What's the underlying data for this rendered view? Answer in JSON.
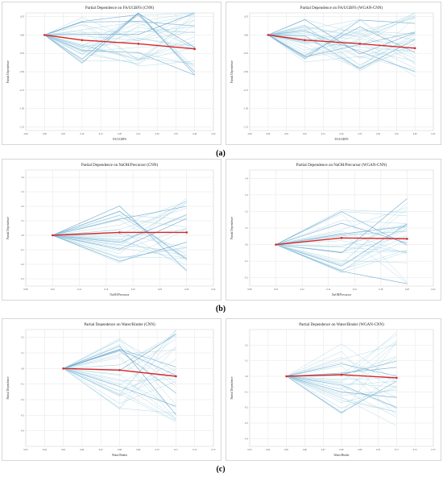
{
  "figure": {
    "captions": [
      "(a)",
      "(b)",
      "(c)"
    ]
  },
  "colors": {
    "ice_line": "#9ecfe0",
    "ice_line_dark": "#5b9cc8",
    "pdp_line": "#d62728",
    "grid": "#e6e6e6",
    "frame": "#bdbdbd"
  },
  "chart_data": [
    {
      "type": "line",
      "title": "Partial Dependence on FA/UGBFS (CNN)",
      "xlabel": "FA/UGBFS",
      "ylabel": "Partial Dependence",
      "xlim": [
        -0.05,
        0.45
      ],
      "ylim": [
        -1.3,
        0.3
      ],
      "xticks": [
        "-0.05",
        "0.00",
        "0.05",
        "0.10",
        "0.15",
        "0.20",
        "0.25",
        "0.30",
        "0.35",
        "0.40",
        "0.45"
      ],
      "yticks": [
        "0.25",
        "0.00",
        "-0.25",
        "-0.50",
        "-0.75",
        "-1.00",
        "-1.25"
      ],
      "x": [
        0.0,
        0.1,
        0.25,
        0.4
      ],
      "series": [
        {
          "values": [
            0.0,
            -0.07,
            -0.12,
            -0.19
          ]
        }
      ],
      "ice_range": [
        -0.75,
        0.25
      ]
    },
    {
      "type": "line",
      "title": "Partial Dependence on FA/UGBFS (WGAN-CNN)",
      "xlabel": "FA/UGBFS",
      "ylabel": "Partial Dependence",
      "xlim": [
        -0.05,
        0.45
      ],
      "ylim": [
        -1.3,
        0.3
      ],
      "xticks": [
        "-0.05",
        "0.00",
        "0.05",
        "0.10",
        "0.15",
        "0.20",
        "0.25",
        "0.30",
        "0.35",
        "0.40",
        "0.45"
      ],
      "yticks": [
        "0.25",
        "0.00",
        "-0.25",
        "-0.50",
        "-0.75",
        "-1.00",
        "-1.25"
      ],
      "x": [
        0.0,
        0.1,
        0.25,
        0.4
      ],
      "series": [
        {
          "values": [
            0.0,
            -0.07,
            -0.12,
            -0.18
          ]
        }
      ],
      "ice_range": [
        -0.75,
        0.25
      ]
    },
    {
      "type": "line",
      "title": "Partial Dependence on NaOH/Precursor (CNN)",
      "xlabel": "NaOH/Precursor",
      "ylabel": "Partial Dependence",
      "xlim": [
        0.08,
        0.22
      ],
      "ylim": [
        -0.35,
        0.45
      ],
      "xticks": [
        "0.08",
        "0.10",
        "0.12",
        "0.14",
        "0.16",
        "0.18",
        "0.20",
        "0.22"
      ],
      "yticks": [
        "0.4",
        "0.3",
        "0.2",
        "0.1",
        "0.0",
        "-0.1",
        "-0.2",
        "-0.3"
      ],
      "x": [
        0.1,
        0.15,
        0.2
      ],
      "series": [
        {
          "values": [
            0.0,
            0.02,
            0.02
          ]
        }
      ],
      "ice_range": [
        -0.25,
        0.3
      ]
    },
    {
      "type": "line",
      "title": "Partial Dependence on NaOH/Precursor (WGAN-CNN)",
      "xlabel": "NaOH/Precursor",
      "ylabel": "Partial Dependence",
      "xlim": [
        0.08,
        0.22
      ],
      "ylim": [
        -0.25,
        0.45
      ],
      "xticks": [
        "0.08",
        "0.10",
        "0.12",
        "0.14",
        "0.16",
        "0.18",
        "0.20",
        "0.22"
      ],
      "yticks": [
        "0.4",
        "0.3",
        "0.2",
        "0.1",
        "0.0",
        "-0.1",
        "-0.2"
      ],
      "x": [
        0.1,
        0.15,
        0.2
      ],
      "series": [
        {
          "values": [
            0.0,
            0.04,
            0.035
          ]
        }
      ],
      "ice_range": [
        -0.18,
        0.35
      ]
    },
    {
      "type": "line",
      "title": "Partial Dependence on Water/Binder (CNN)",
      "xlabel": "Water/Binder",
      "ylabel": "Partial Dependence",
      "xlim": [
        0.63,
        0.73
      ],
      "ylim": [
        -0.5,
        0.25
      ],
      "xticks": [
        "0.63",
        "0.64",
        "0.65",
        "0.66",
        "0.67",
        "0.68",
        "0.69",
        "0.70",
        "0.71",
        "0.72",
        "0.73"
      ],
      "yticks": [
        "0.2",
        "0.1",
        "0.0",
        "-0.1",
        "-0.2",
        "-0.3",
        "-0.4"
      ],
      "x": [
        0.65,
        0.68,
        0.71
      ],
      "series": [
        {
          "values": [
            0.0,
            -0.01,
            -0.05
          ]
        }
      ],
      "ice_range": [
        -0.45,
        0.2
      ]
    },
    {
      "type": "line",
      "title": "Partial Dependence on Water/Binder (WGAN-CNN)",
      "xlabel": "Water/Binder",
      "ylabel": "Partial Dependence",
      "xlim": [
        0.63,
        0.73
      ],
      "ylim": [
        -0.45,
        0.3
      ],
      "xticks": [
        "0.63",
        "0.64",
        "0.65",
        "0.66",
        "0.67",
        "0.68",
        "0.69",
        "0.70",
        "0.71",
        "0.72",
        "0.73"
      ],
      "yticks": [
        "0.2",
        "0.1",
        "0.0",
        "-0.1",
        "-0.2",
        "-0.3",
        "-0.4"
      ],
      "x": [
        0.65,
        0.68,
        0.71
      ],
      "series": [
        {
          "values": [
            0.0,
            0.01,
            -0.01
          ]
        }
      ],
      "ice_range": [
        -0.4,
        0.25
      ]
    }
  ]
}
